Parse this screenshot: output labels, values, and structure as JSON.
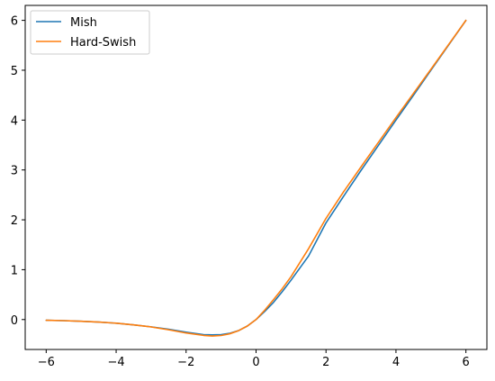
{
  "chart_data": {
    "type": "line",
    "title": "",
    "xlabel": "",
    "ylabel": "",
    "xlim": [
      -6.6,
      6.6
    ],
    "ylim": [
      -0.6,
      6.3
    ],
    "grid": false,
    "legend_placement": "top-left",
    "x_ticks": [
      -6,
      -4,
      -2,
      0,
      2,
      4,
      6
    ],
    "y_ticks": [
      0,
      1,
      2,
      3,
      4,
      5,
      6
    ],
    "x_tick_labels": [
      "−6",
      "−4",
      "−2",
      "0",
      "2",
      "4",
      "6"
    ],
    "y_tick_labels": [
      "0",
      "1",
      "2",
      "3",
      "4",
      "5",
      "6"
    ],
    "x": [
      -6.0,
      -5.5,
      -5.0,
      -4.5,
      -4.0,
      -3.5,
      -3.0,
      -2.5,
      -2.0,
      -1.5,
      -1.25,
      -1.0,
      -0.75,
      -0.5,
      -0.25,
      0.0,
      0.25,
      0.5,
      0.75,
      1.0,
      1.5,
      2.0,
      2.5,
      3.0,
      3.5,
      4.0,
      4.5,
      5.0,
      5.5,
      6.0
    ],
    "series": [
      {
        "name": "Mish",
        "color": "#1f77b4",
        "values": [
          -0.015,
          -0.022,
          -0.034,
          -0.05,
          -0.073,
          -0.106,
          -0.146,
          -0.194,
          -0.252,
          -0.303,
          -0.308,
          -0.303,
          -0.276,
          -0.222,
          -0.13,
          0.0,
          0.165,
          0.345,
          0.56,
          0.79,
          1.273,
          1.94,
          2.47,
          2.99,
          3.495,
          4.0,
          4.498,
          5.0,
          5.499,
          6.0
        ]
      },
      {
        "name": "Hard-Swish",
        "color": "#ff7f0e",
        "values": [
          -0.015,
          -0.022,
          -0.034,
          -0.05,
          -0.073,
          -0.106,
          -0.148,
          -0.205,
          -0.27,
          -0.318,
          -0.33,
          -0.32,
          -0.285,
          -0.222,
          -0.13,
          0.0,
          0.19,
          0.4,
          0.62,
          0.86,
          1.42,
          2.03,
          2.56,
          3.06,
          3.555,
          4.05,
          4.535,
          5.02,
          5.51,
          6.0
        ]
      }
    ]
  }
}
